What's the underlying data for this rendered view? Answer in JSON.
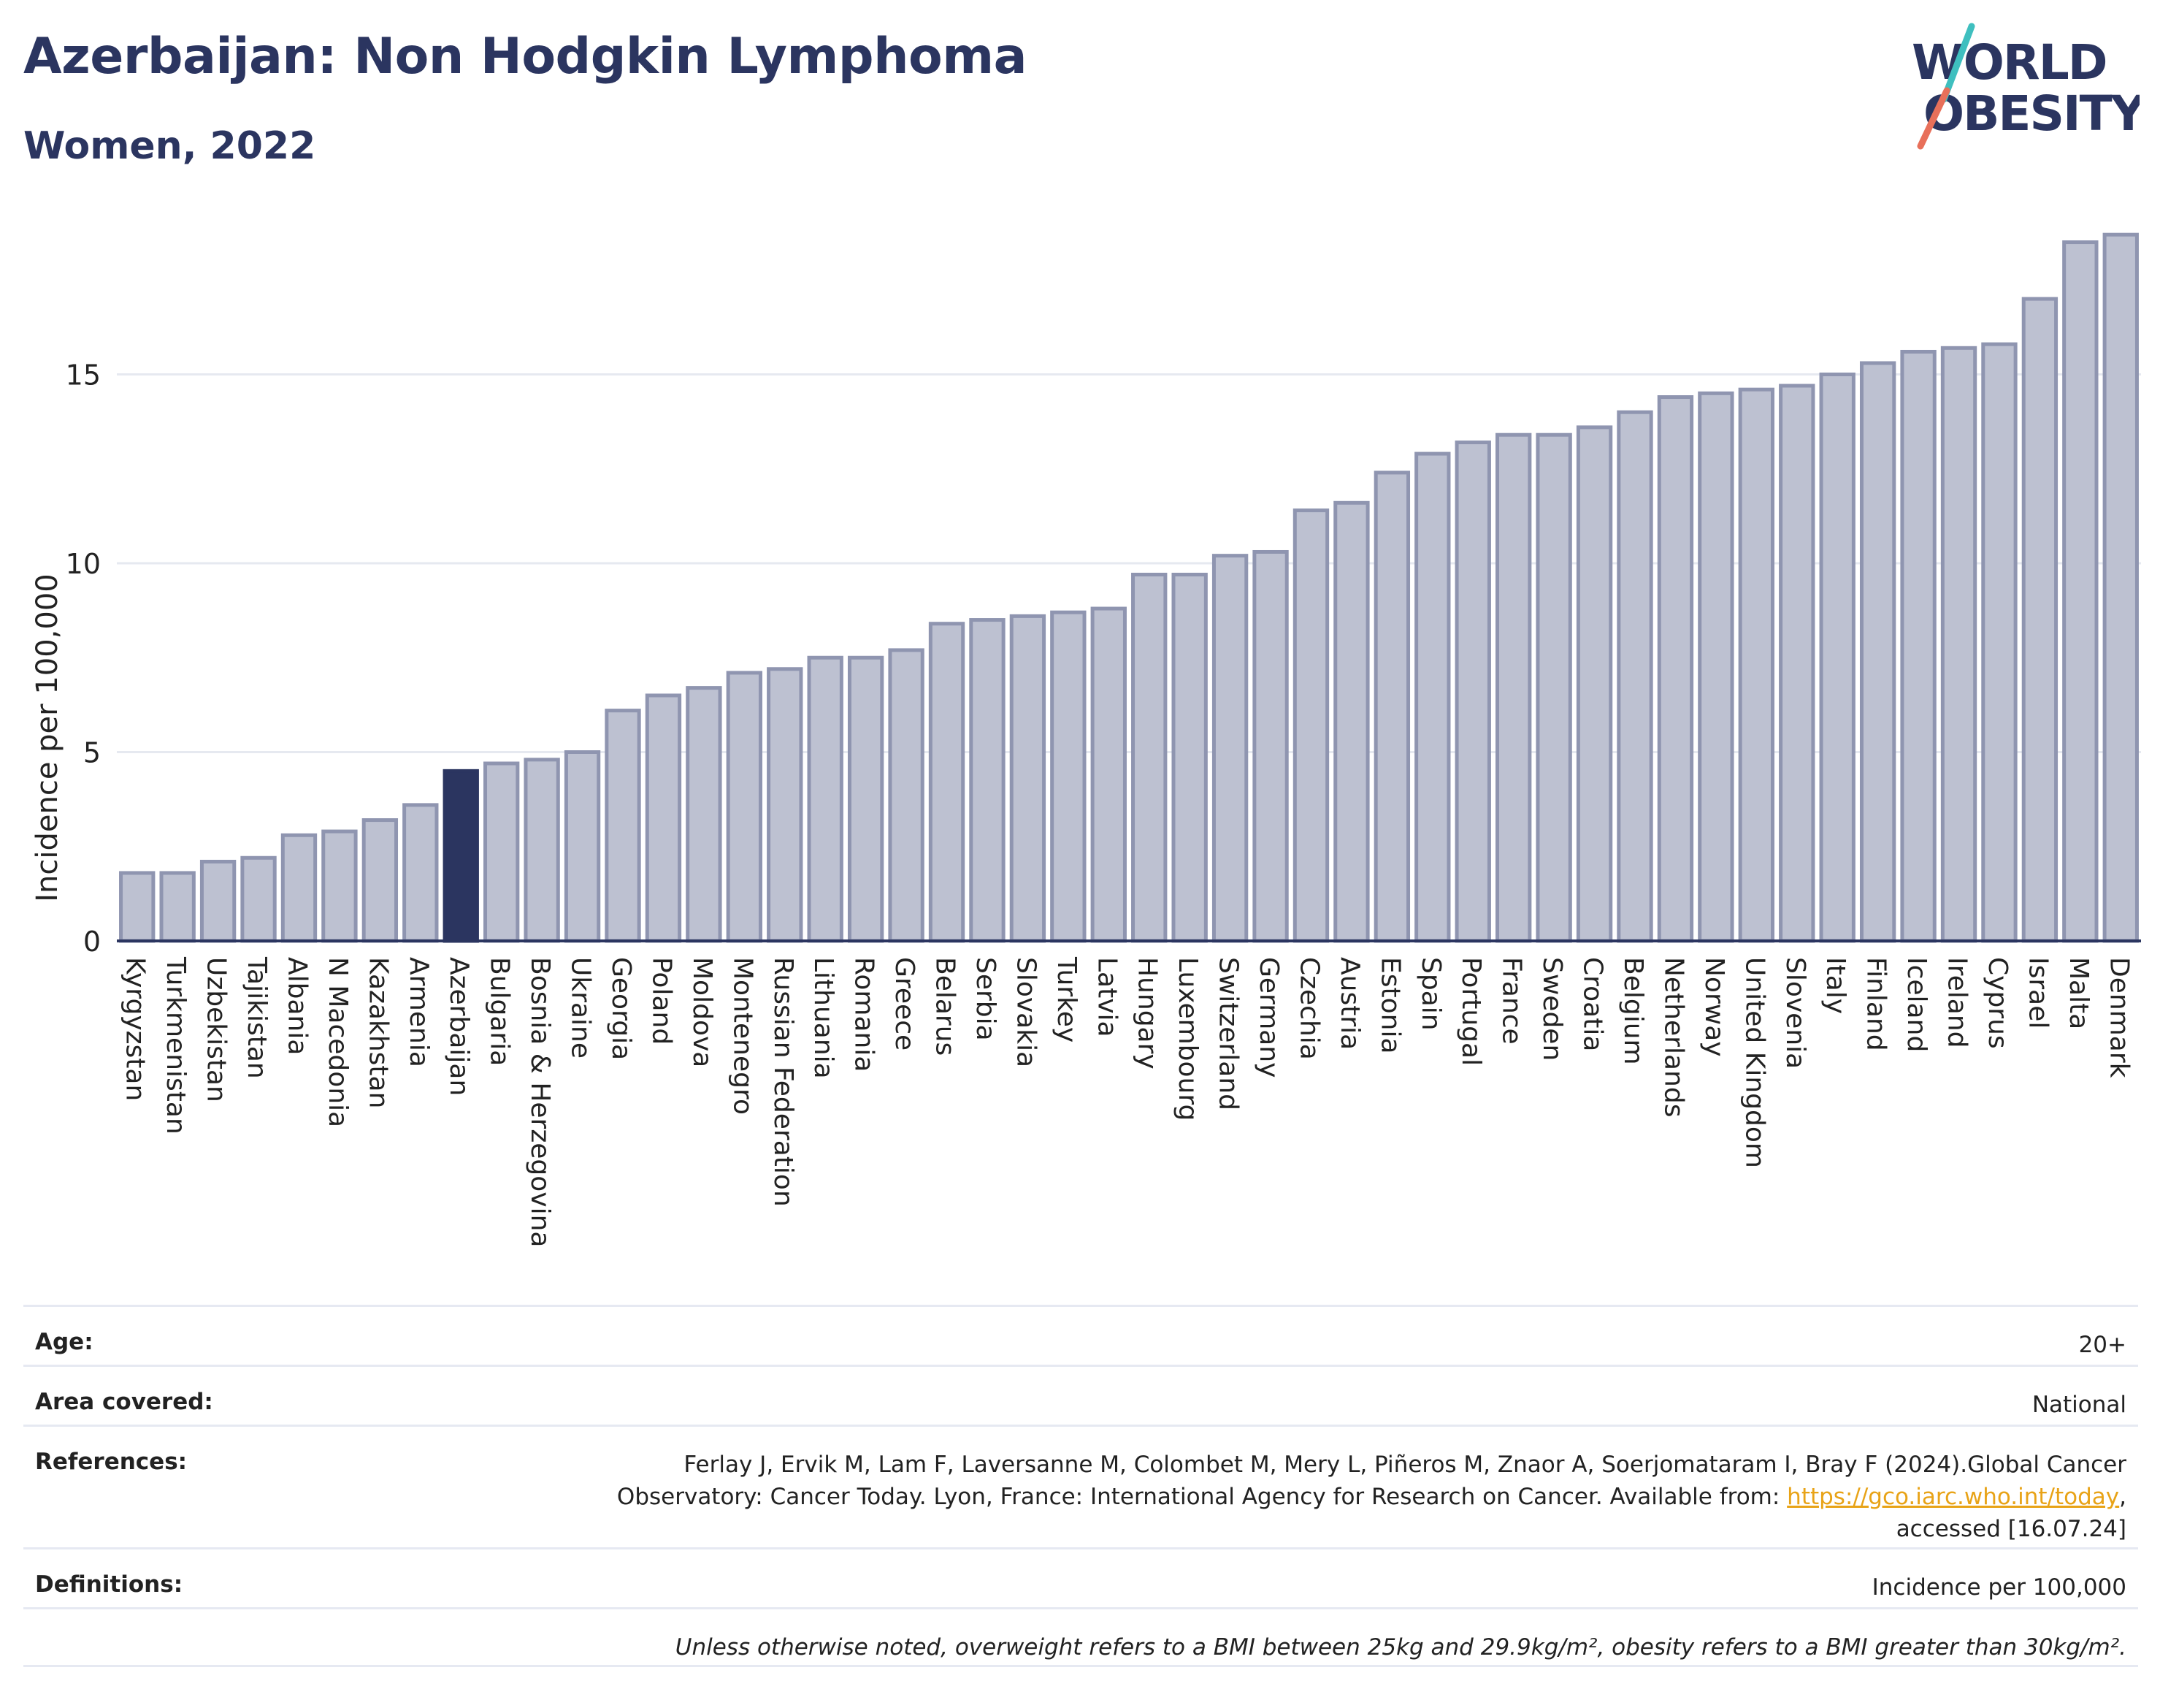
{
  "header": {
    "title": "Azerbaijan: Non Hodgkin Lymphoma",
    "subtitle": "Women, 2022"
  },
  "logo": {
    "line1": "WORLD",
    "line2": "OBESITY",
    "colors": {
      "text": "#2b3560",
      "slash_teal": "#3fbfbf",
      "slash_coral": "#e8705a"
    }
  },
  "chart_data": {
    "type": "bar",
    "ylabel": "Incidence per 100,000",
    "ylim": [
      0,
      19
    ],
    "yticks": [
      0,
      5,
      10,
      15
    ],
    "grid": true,
    "highlight": "Azerbaijan",
    "colors": {
      "bar": "#bdc1d1",
      "bar_border": "#8f95b0",
      "highlight": "#2b3560",
      "grid": "#e6e9f0",
      "axis": "#2b3560"
    },
    "categories": [
      "Kyrgyzstan",
      "Turkmenistan",
      "Uzbekistan",
      "Tajikistan",
      "Albania",
      "N Macedonia",
      "Kazakhstan",
      "Armenia",
      "Azerbaijan",
      "Bulgaria",
      "Bosnia & Herzegovina",
      "Ukraine",
      "Georgia",
      "Poland",
      "Moldova",
      "Montenegro",
      "Russian Federation",
      "Lithuania",
      "Romania",
      "Greece",
      "Belarus",
      "Serbia",
      "Slovakia",
      "Turkey",
      "Latvia",
      "Hungary",
      "Luxembourg",
      "Switzerland",
      "Germany",
      "Czechia",
      "Austria",
      "Estonia",
      "Spain",
      "Portugal",
      "France",
      "Sweden",
      "Croatia",
      "Belgium",
      "Netherlands",
      "Norway",
      "United Kingdom",
      "Slovenia",
      "Italy",
      "Finland",
      "Iceland",
      "Ireland",
      "Cyprus",
      "Israel",
      "Malta",
      "Denmark"
    ],
    "values": [
      1.8,
      1.8,
      2.1,
      2.2,
      2.8,
      2.9,
      3.2,
      3.6,
      4.5,
      4.7,
      4.8,
      5.0,
      6.1,
      6.5,
      6.7,
      7.1,
      7.2,
      7.5,
      7.5,
      7.7,
      8.4,
      8.5,
      8.6,
      8.7,
      8.8,
      9.7,
      9.7,
      10.2,
      10.3,
      11.4,
      11.6,
      12.4,
      12.9,
      13.2,
      13.4,
      13.4,
      13.6,
      14.0,
      14.4,
      14.5,
      14.6,
      14.7,
      15.0,
      15.3,
      15.6,
      15.7,
      15.8,
      17.0,
      18.5,
      18.7
    ]
  },
  "info": {
    "age_label": "Age:",
    "age_value": "20+",
    "area_label": "Area covered:",
    "area_value": "National",
    "references_label": "References:",
    "references_line1": "Ferlay J, Ervik M, Lam F, Laversanne M, Colombet M, Mery L, Piñeros M, Znaor A, Soerjomataram I, Bray F (2024).Global Cancer",
    "references_line2": "Observatory: Cancer Today. Lyon, France: International Agency for Research on Cancer. Available from: ",
    "references_link": "https://gco.iarc.who.int/today",
    "references_line2_end": ",",
    "references_line3": "accessed [16.07.24]",
    "definitions_label": "Definitions:",
    "definitions_value": "Incidence per 100,000",
    "note": "Unless otherwise noted, overweight refers to a BMI between 25kg and 29.9kg/m², obesity refers to a BMI greater than 30kg/m²."
  }
}
